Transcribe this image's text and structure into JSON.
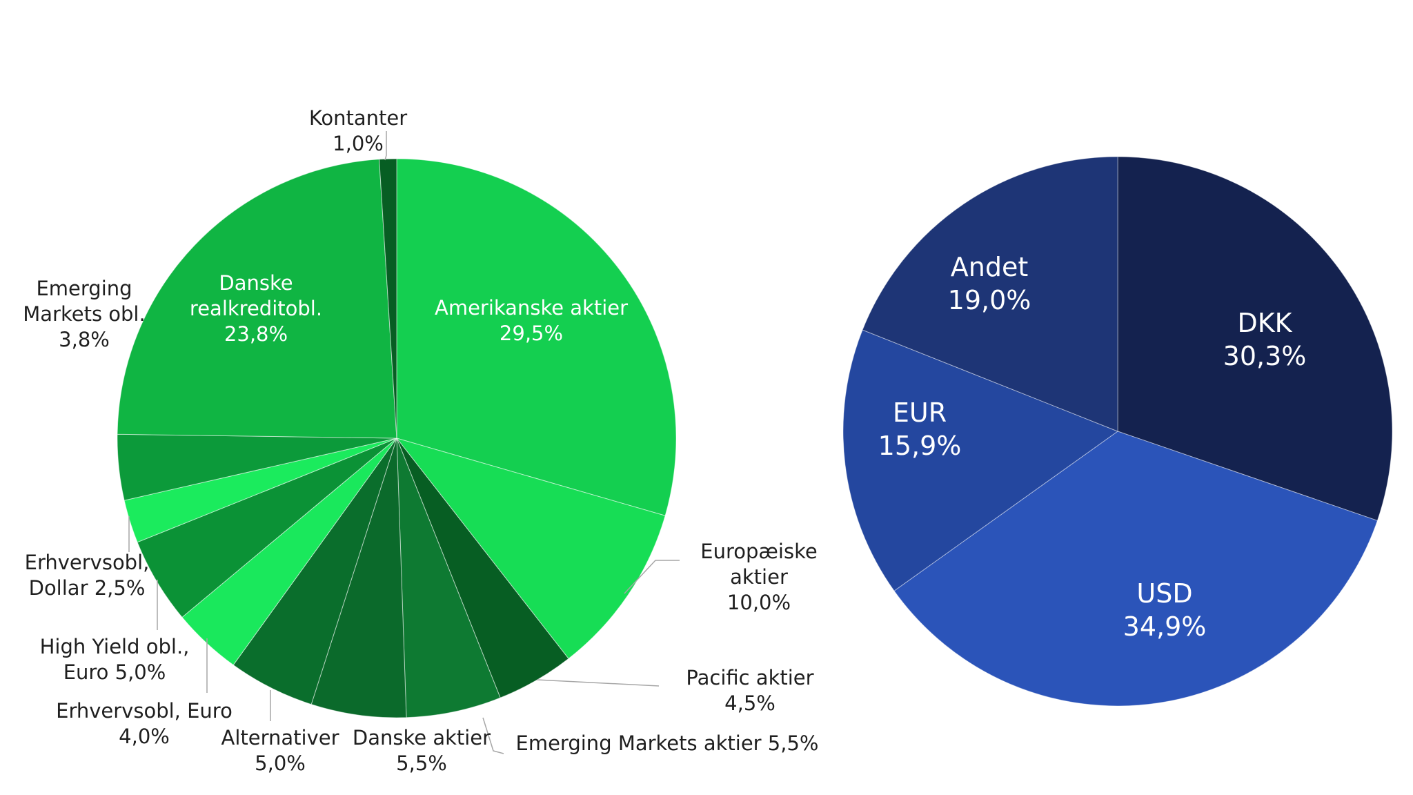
{
  "chart_data": [
    {
      "type": "pie",
      "title": "",
      "start_angle_deg": 0,
      "direction": "clockwise",
      "slices": [
        {
          "label": "Amerikanske aktier",
          "value": 29.5,
          "display": "29,5%",
          "color": "#14cf50",
          "label_inside": true
        },
        {
          "label": "Europæiske aktier",
          "value": 10.0,
          "display": "10,0%",
          "color": "#17dd55",
          "label_inside": false
        },
        {
          "label": "Pacific aktier",
          "value": 4.5,
          "display": "4,5%",
          "color": "#075e23",
          "label_inside": false
        },
        {
          "label": "Emerging Markets aktier",
          "value": 5.5,
          "display": "5,5%",
          "color": "#0e7a32",
          "label_inside": false
        },
        {
          "label": "Danske aktier",
          "value": 5.5,
          "display": "5,5%",
          "color": "#0b6a2b",
          "label_inside": false
        },
        {
          "label": "Alternativer",
          "value": 5.0,
          "display": "5,0%",
          "color": "#0a6e2c",
          "label_inside": false
        },
        {
          "label": "Erhvervsobl, Euro",
          "value": 4.0,
          "display": "4,0%",
          "color": "#1ae85c",
          "label_inside": false
        },
        {
          "label": "High Yield obl., Euro",
          "value": 5.0,
          "display": "5,0%",
          "color": "#0b9236",
          "label_inside": false
        },
        {
          "label": "Erhvervsobl, Dollar",
          "value": 2.5,
          "display": "2,5%",
          "color": "#1beb5d",
          "label_inside": false
        },
        {
          "label": "Emerging Markets obl.",
          "value": 3.8,
          "display": "3,8%",
          "color": "#0c9a3a",
          "label_inside": false
        },
        {
          "label": "Danske realkreditobl.",
          "value": 23.8,
          "display": "23,8%",
          "color": "#10b543",
          "label_inside": true
        },
        {
          "label": "Kontanter",
          "value": 1.0,
          "display": "1,0%",
          "color": "#075e23",
          "label_inside": false
        }
      ],
      "labels": [
        {
          "lines": [
            "Amerikanske aktier",
            "29,5%"
          ]
        },
        {
          "lines": [
            "Danske",
            "realkreditobl.",
            "23,8%"
          ]
        },
        {
          "lines": [
            "Kontanter",
            "1,0%"
          ]
        },
        {
          "lines": [
            "Emerging",
            "Markets obl.",
            "3,8%"
          ]
        },
        {
          "lines": [
            "Europæiske",
            "aktier",
            "10,0%"
          ]
        },
        {
          "lines": [
            "Pacific aktier",
            "4,5%"
          ]
        },
        {
          "lines": [
            "Emerging Markets aktier 5,5%"
          ]
        },
        {
          "lines": [
            "Danske aktier",
            "5,5%"
          ]
        },
        {
          "lines": [
            "Alternativer",
            "5,0%"
          ]
        },
        {
          "lines": [
            "Erhvervsobl, Euro",
            "4,0%"
          ]
        },
        {
          "lines": [
            "High Yield obl.,",
            "Euro 5,0%"
          ]
        },
        {
          "lines": [
            "Erhvervsobl,",
            "Dollar 2,5%"
          ]
        }
      ]
    },
    {
      "type": "pie",
      "title": "",
      "start_angle_deg": 0,
      "direction": "clockwise",
      "slices": [
        {
          "label": "DKK",
          "value": 30.3,
          "display": "30,3%",
          "color": "#14224f"
        },
        {
          "label": "USD",
          "value": 34.9,
          "display": "34,9%",
          "color": "#2b54b9"
        },
        {
          "label": "EUR",
          "value": 15.9,
          "display": "15,9%",
          "color": "#24479f"
        },
        {
          "label": "Andet",
          "value": 19.0,
          "display": "19,0%",
          "color": "#1e3576"
        }
      ],
      "labels": [
        {
          "lines": [
            "DKK",
            "30,3%"
          ]
        },
        {
          "lines": [
            "USD",
            "34,9%"
          ]
        },
        {
          "lines": [
            "EUR",
            "15,9%"
          ]
        },
        {
          "lines": [
            "Andet",
            "19,0%"
          ]
        }
      ]
    }
  ]
}
